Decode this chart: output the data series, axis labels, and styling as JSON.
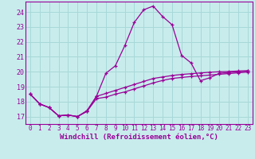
{
  "xlabel": "Windchill (Refroidissement éolien,°C)",
  "bg_color": "#c8ecec",
  "grid_color": "#a8d8d8",
  "line_color": "#990099",
  "xlim": [
    -0.5,
    23.5
  ],
  "ylim": [
    16.5,
    24.7
  ],
  "yticks": [
    17,
    18,
    19,
    20,
    21,
    22,
    23,
    24
  ],
  "xticks": [
    0,
    1,
    2,
    3,
    4,
    5,
    6,
    7,
    8,
    9,
    10,
    11,
    12,
    13,
    14,
    15,
    16,
    17,
    18,
    19,
    20,
    21,
    22,
    23
  ],
  "series_main_x": [
    0,
    1,
    2,
    3,
    4,
    5,
    6,
    7,
    8,
    9,
    10,
    11,
    12,
    13,
    14,
    15,
    16,
    17,
    18,
    19,
    20,
    21,
    22,
    23
  ],
  "series_main_y": [
    18.5,
    17.85,
    17.6,
    17.05,
    17.1,
    17.0,
    17.35,
    18.35,
    19.9,
    20.4,
    21.75,
    23.3,
    24.15,
    24.4,
    23.7,
    23.15,
    21.1,
    20.6,
    19.4,
    19.6,
    19.9,
    19.95,
    20.0,
    20.05
  ],
  "series_lower_x": [
    0,
    1,
    2,
    3,
    4,
    5,
    6,
    7,
    8,
    9,
    10,
    11,
    12,
    13,
    14,
    15,
    16,
    17,
    18,
    19,
    20,
    21,
    22,
    23
  ],
  "series_lower_y": [
    18.5,
    17.85,
    17.6,
    17.05,
    17.1,
    17.0,
    17.35,
    18.2,
    18.3,
    18.5,
    18.65,
    18.85,
    19.05,
    19.25,
    19.42,
    19.55,
    19.62,
    19.68,
    19.73,
    19.78,
    19.83,
    19.88,
    19.93,
    19.98
  ],
  "series_upper_x": [
    0,
    1,
    2,
    3,
    4,
    5,
    6,
    7,
    8,
    9,
    10,
    11,
    12,
    13,
    14,
    15,
    16,
    17,
    18,
    19,
    20,
    21,
    22,
    23
  ],
  "series_upper_y": [
    18.5,
    17.85,
    17.6,
    17.05,
    17.1,
    17.0,
    17.4,
    18.35,
    18.55,
    18.75,
    18.95,
    19.15,
    19.35,
    19.55,
    19.65,
    19.75,
    19.82,
    19.87,
    19.92,
    19.97,
    20.0,
    20.02,
    20.05,
    20.07
  ],
  "marker": "+",
  "markersize": 3.5,
  "linewidth": 0.9,
  "tick_fontsize": 5.5,
  "xlabel_fontsize": 6.5
}
